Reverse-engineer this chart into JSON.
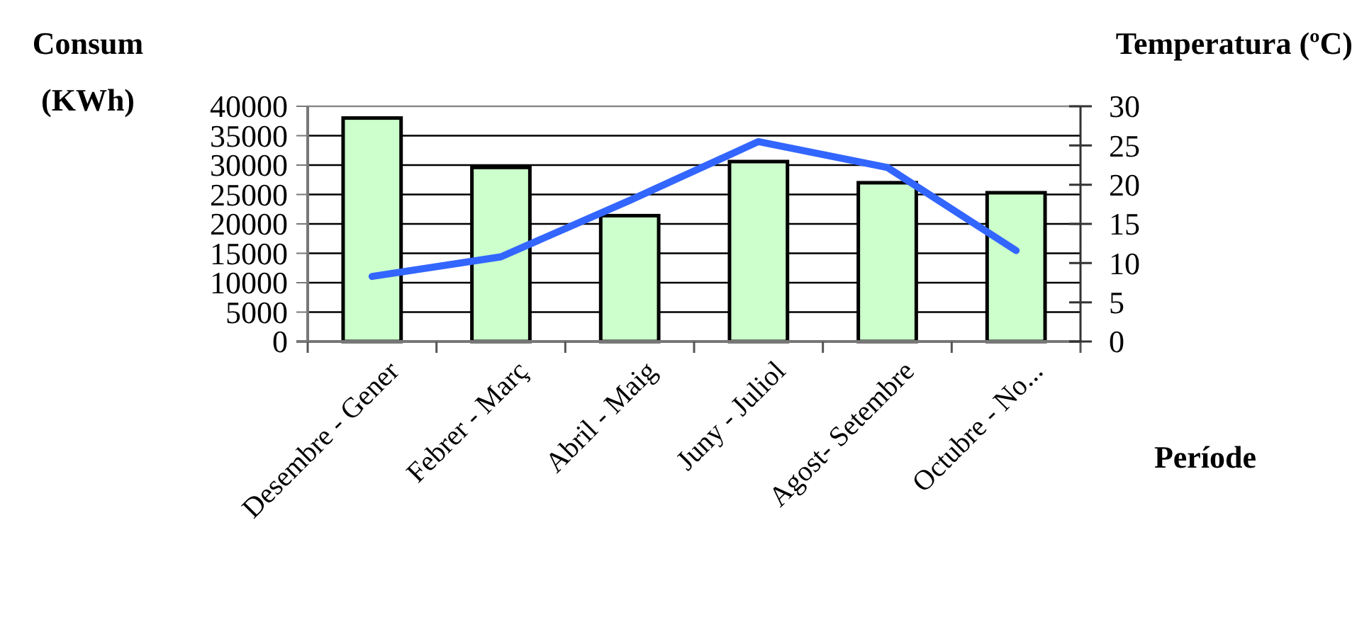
{
  "chart_data": {
    "type": "bar",
    "ylabel": "Consum (KWh)",
    "y2label": "Temperatura (ºC)",
    "xlabel": "Període",
    "categories": [
      "Desembre - Gener",
      "Febrer - Març",
      "Abril - Maig",
      "Juny - Juliol",
      "Agost- Setembre",
      "Octubre - No..."
    ],
    "series": [
      {
        "color": "#ccffcc",
        "values": [
          38000,
          29600,
          21400,
          30600,
          27000,
          25300
        ]
      },
      {
        "type": "line",
        "axis": "y2",
        "color": "#3366ff",
        "values": [
          8.3,
          10.8,
          18,
          25.5,
          22.2,
          11.6
        ]
      }
    ],
    "ylim": [
      0,
      40000
    ],
    "yticks": [
      0,
      5000,
      10000,
      15000,
      20000,
      25000,
      30000,
      35000,
      40000
    ],
    "y2lim": [
      0,
      30
    ],
    "y2ticks": [
      0,
      5,
      10,
      15,
      20,
      25,
      30
    ],
    "grid": "y"
  }
}
